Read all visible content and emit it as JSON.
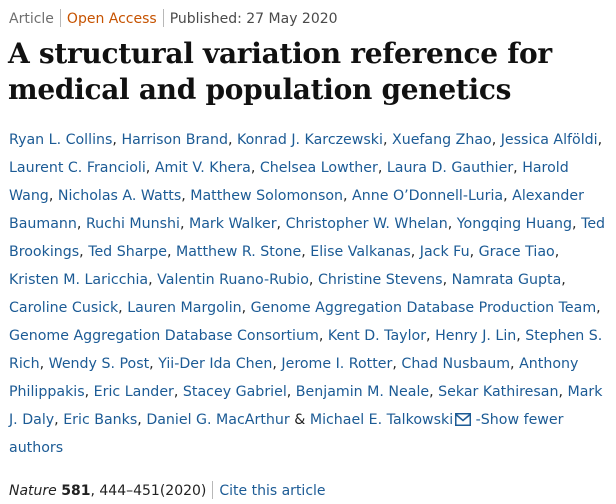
{
  "header": {
    "article_type": "Article",
    "access": "Open Access",
    "published": "Published: 27 May 2020"
  },
  "title": "A structural variation reference for medical and population genetics",
  "authors": [
    "Ryan L. Collins",
    "Harrison Brand",
    "Konrad J. Karczewski",
    "Xuefang Zhao",
    "Jessica Alföldi",
    "Laurent C. Francioli",
    "Amit V. Khera",
    "Chelsea Lowther",
    "Laura D. Gauthier",
    "Harold Wang",
    "Nicholas A. Watts",
    "Matthew Solomonson",
    "Anne O’Donnell-Luria",
    "Alexander Baumann",
    "Ruchi Munshi",
    "Mark Walker",
    "Christopher W. Whelan",
    "Yongqing Huang",
    "Ted Brookings",
    "Ted Sharpe",
    "Matthew R. Stone",
    "Elise Valkanas",
    "Jack Fu",
    "Grace Tiao",
    "Kristen M. Laricchia",
    "Valentin Ruano-Rubio",
    "Christine Stevens",
    "Namrata Gupta",
    "Caroline Cusick",
    "Lauren Margolin",
    "Genome Aggregation Database Production Team",
    "Genome Aggregation Database Consortium",
    "Kent D. Taylor",
    "Henry J. Lin",
    "Stephen S. Rich",
    "Wendy S. Post",
    "Yii-Der Ida Chen",
    "Jerome I. Rotter",
    "Chad Nusbaum",
    "Anthony Philippakis",
    "Eric Lander",
    "Stacey Gabriel",
    "Benjamin M. Neale",
    "Sekar Kathiresan",
    "Mark J. Daly",
    "Eric Banks",
    "Daniel G. MacArthur"
  ],
  "last_author": {
    "ampersand": "&",
    "name": "Michael E. Talkowski",
    "icon": "mail-icon"
  },
  "show_fewer_label": "-Show fewer authors",
  "citation": {
    "journal": "Nature",
    "volume": "581",
    "pages_year": ", 444–451(2020)",
    "cite_label": "Cite this article"
  },
  "colors": {
    "link": "#1c5b95",
    "open_access": "#c65301",
    "separator": "#b8b8b8"
  }
}
